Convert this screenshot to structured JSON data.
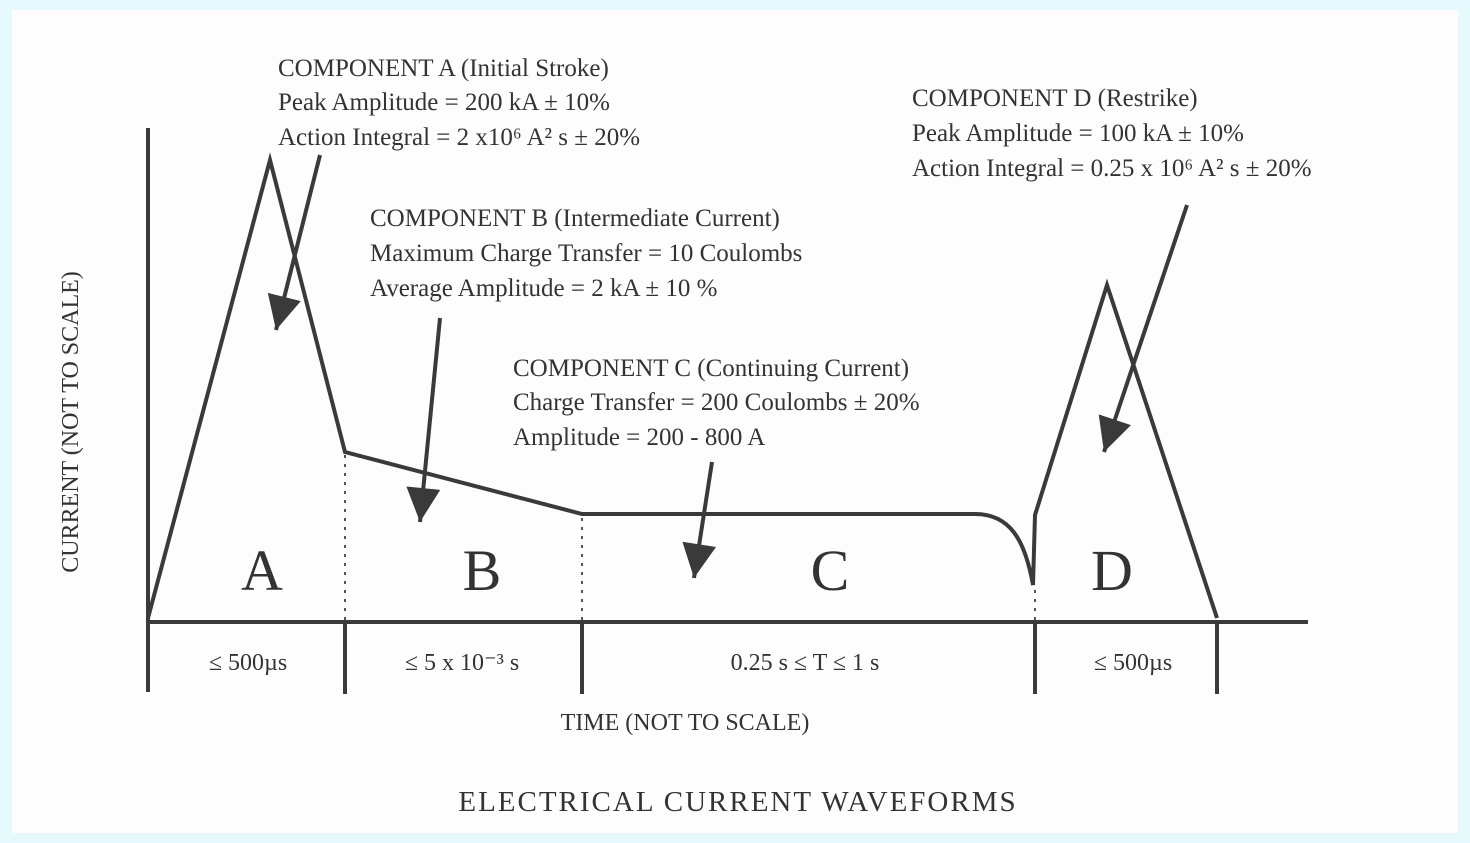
{
  "title": "ELECTRICAL CURRENT WAVEFORMS",
  "y_axis_label": "CURRENT (NOT TO SCALE)",
  "x_axis_label": "TIME (NOT TO SCALE)",
  "components": [
    {
      "lines": [
        "COMPONENT A (Initial Stroke)",
        "Peak Amplitude = 200 kA ± 10%",
        "Action Integral = 2 x10⁶  A² s  ± 20%"
      ],
      "region": "A",
      "duration": "≤ 500µs"
    },
    {
      "lines": [
        "COMPONENT B (Intermediate Current)",
        "Maximum Charge Transfer = 10 Coulombs",
        "Average Amplitude = 2 kA ± 10 %"
      ],
      "region": "B",
      "duration": "≤ 5 x 10⁻³ s"
    },
    {
      "lines": [
        "COMPONENT C (Continuing Current)",
        "Charge Transfer = 200 Coulombs ± 20%",
        "Amplitude = 200 - 800 A"
      ],
      "region": "C",
      "duration": "0.25 s ≤ T ≤ 1 s"
    },
    {
      "lines": [
        "COMPONENT D (Restrike)",
        "Peak Amplitude = 100 kA ± 10%",
        "Action Integral = 0.25 x 10⁶ A² s ± 20%"
      ],
      "region": "D",
      "duration": "≤ 500µs"
    }
  ]
}
